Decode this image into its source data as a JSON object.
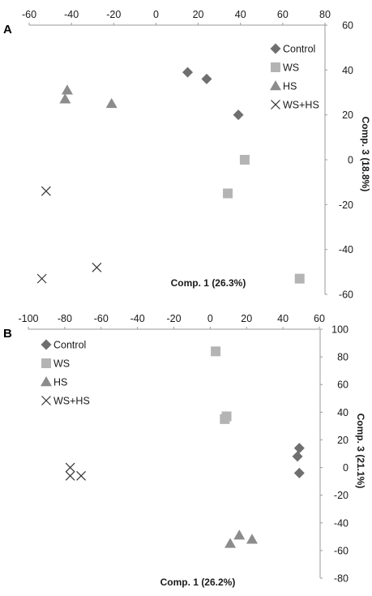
{
  "chart_data": [
    {
      "type": "scatter",
      "panel_label": "A",
      "xlabel": "Comp. 1 (26.3%)",
      "ylabel": "Comp. 3 (18.8%)",
      "xlim": [
        -60,
        80
      ],
      "ylim": [
        -60,
        60
      ],
      "x_ticks": [
        -60,
        -40,
        -20,
        0,
        20,
        40,
        60,
        80
      ],
      "y_ticks": [
        60,
        40,
        20,
        0,
        -20,
        -40,
        -60
      ],
      "legend_position": "top-right",
      "series": [
        {
          "name": "Control",
          "marker": "diamond",
          "color": "#6f6f6f",
          "points": [
            [
              15,
              39
            ],
            [
              24,
              36
            ],
            [
              39,
              20
            ]
          ]
        },
        {
          "name": "WS",
          "marker": "square",
          "color": "#b4b4b4",
          "points": [
            [
              42,
              0
            ],
            [
              34,
              -15
            ],
            [
              68,
              -53
            ]
          ]
        },
        {
          "name": "HS",
          "marker": "triangle",
          "color": "#8c8c8c",
          "points": [
            [
              -42,
              31
            ],
            [
              -43,
              27
            ],
            [
              -21,
              25
            ]
          ]
        },
        {
          "name": "WS+HS",
          "marker": "cross",
          "color": "#333333",
          "points": [
            [
              -52,
              -14
            ],
            [
              -54,
              -53
            ],
            [
              -28,
              -48
            ]
          ]
        }
      ]
    },
    {
      "type": "scatter",
      "panel_label": "B",
      "xlabel": "Comp. 1 (26.2%)",
      "ylabel": "Comp. 3 (21.1%)",
      "xlim": [
        -100,
        60
      ],
      "ylim": [
        -80,
        100
      ],
      "x_ticks": [
        -100,
        -80,
        -60,
        -40,
        -20,
        0,
        20,
        40,
        60
      ],
      "y_ticks": [
        100,
        80,
        60,
        40,
        20,
        0,
        -20,
        -40,
        -60,
        -80
      ],
      "legend_position": "top-left",
      "series": [
        {
          "name": "Control",
          "marker": "diamond",
          "color": "#6f6f6f",
          "points": [
            [
              49,
              14
            ],
            [
              48,
              8
            ],
            [
              49,
              -4
            ]
          ]
        },
        {
          "name": "WS",
          "marker": "square",
          "color": "#b4b4b4",
          "points": [
            [
              3,
              84
            ],
            [
              9,
              37
            ],
            [
              8,
              35
            ]
          ]
        },
        {
          "name": "HS",
          "marker": "triangle",
          "color": "#8c8c8c",
          "points": [
            [
              16,
              -49
            ],
            [
              11,
              -55
            ],
            [
              23,
              -52
            ]
          ]
        },
        {
          "name": "WS+HS",
          "marker": "cross",
          "color": "#333333",
          "points": [
            [
              -77,
              0
            ],
            [
              -77,
              -6
            ],
            [
              -71,
              -6
            ]
          ]
        }
      ]
    }
  ]
}
